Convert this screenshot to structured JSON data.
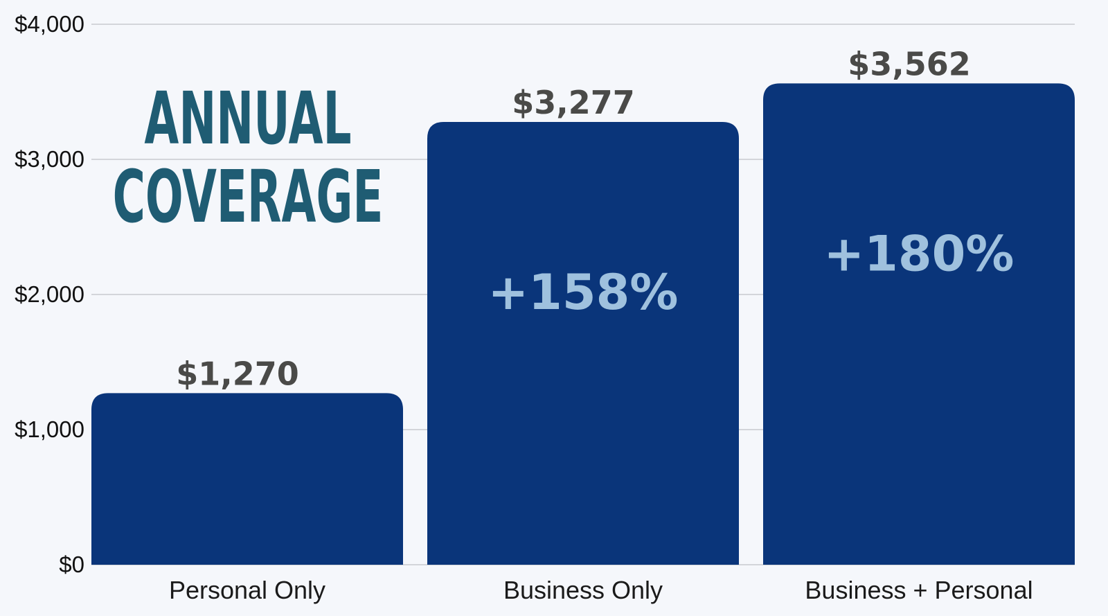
{
  "chart_data": {
    "type": "bar",
    "title_lines": [
      "ANNUAL",
      "COVERAGE"
    ],
    "categories": [
      "Personal Only",
      "Business Only",
      "Business + Personal"
    ],
    "values": [
      1270,
      3277,
      3562
    ],
    "value_labels": [
      "$1,270",
      "$3,277",
      "$3,562"
    ],
    "change_labels": [
      "",
      "+158%",
      "+180%"
    ],
    "ylim": [
      0,
      4000
    ],
    "yticks": [
      0,
      1000,
      2000,
      3000,
      4000
    ],
    "ytick_labels": [
      "$0",
      "$1,000",
      "$2,000",
      "$3,000",
      "$4,000"
    ],
    "xlabel": "",
    "ylabel": "",
    "grid": true,
    "legend": "none"
  },
  "colors": {
    "background": "#f5f7fb",
    "bar": "#0a357a",
    "gridline": "#c8cad0",
    "title": "#1f5c73",
    "value_label": "#4a4a48",
    "change_label": "#9fc1de"
  }
}
